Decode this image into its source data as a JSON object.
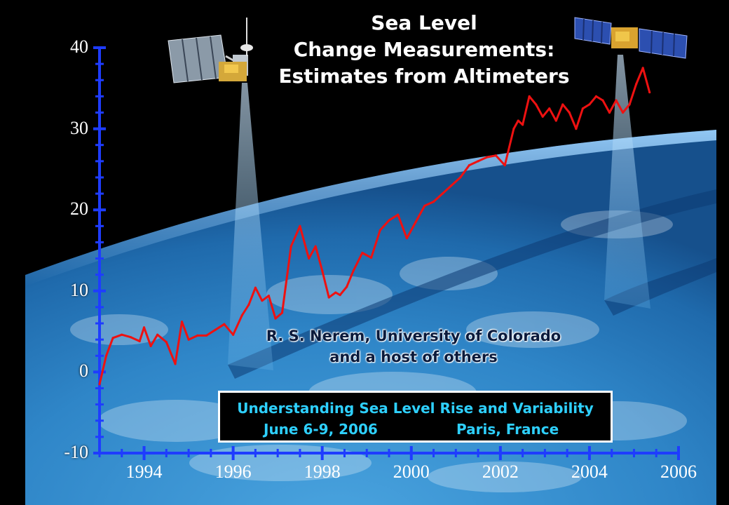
{
  "title": {
    "line1": "Sea Level",
    "line2": "Change Measurements:",
    "line3": "Estimates from Altimeters"
  },
  "credit": {
    "line1": "R. S. Nerem, University of Colorado",
    "line2": "and a host of others"
  },
  "conference": {
    "title": "Understanding Sea Level Rise and Variability",
    "dates": "June 6-9, 2006",
    "location": "Paris, France"
  },
  "colors": {
    "series": "#ee1111",
    "axis": "#1e3cff",
    "text": "#ffffff",
    "conference_text": "#2ed0ff"
  },
  "chart_data": {
    "type": "line",
    "title": "Sea Level Change Measurements: Estimates from Altimeters",
    "xlabel": "",
    "ylabel": "",
    "xlim": [
      1993,
      2006
    ],
    "ylim": [
      -10,
      40
    ],
    "x_ticks": [
      "1994",
      "1996",
      "1998",
      "2000",
      "2002",
      "2004",
      "2006"
    ],
    "y_ticks": [
      "40",
      "30",
      "20",
      "10",
      "0",
      "-10"
    ],
    "grid": false,
    "series": [
      {
        "x": [
          1993.0,
          1993.15,
          1993.3,
          1993.5,
          1993.7,
          1993.9,
          1994.0,
          1994.15,
          1994.3,
          1994.5,
          1994.7,
          1994.85,
          1995.0,
          1995.2,
          1995.4,
          1995.6,
          1995.8,
          1996.0,
          1996.2,
          1996.35,
          1996.5,
          1996.65,
          1996.8,
          1996.95,
          1997.1,
          1997.3,
          1997.5,
          1997.7,
          1997.85,
          1998.0,
          1998.15,
          1998.3,
          1998.4,
          1998.55,
          1998.7,
          1998.9,
          1999.1,
          1999.3,
          1999.5,
          1999.7,
          1999.9,
          2000.1,
          2000.3,
          2000.5,
          2000.7,
          2000.9,
          2001.1,
          2001.3,
          2001.5,
          2001.7,
          2001.9,
          2002.1,
          2002.3,
          2002.4,
          2002.5,
          2002.65,
          2002.8,
          2002.95,
          2003.1,
          2003.25,
          2003.4,
          2003.55,
          2003.7,
          2003.85,
          2004.0,
          2004.15,
          2004.3,
          2004.45,
          2004.6,
          2004.75,
          2004.9,
          2005.05,
          2005.2,
          2005.35
        ],
        "y": [
          -1.5,
          2.0,
          4.2,
          4.6,
          4.3,
          3.8,
          5.5,
          3.2,
          4.6,
          3.7,
          1.0,
          6.2,
          4.0,
          4.5,
          4.5,
          5.2,
          5.9,
          4.6,
          7.0,
          8.3,
          10.4,
          8.8,
          9.4,
          6.6,
          7.3,
          15.5,
          18.0,
          14.0,
          15.5,
          12.5,
          9.2,
          9.8,
          9.5,
          10.5,
          12.5,
          14.7,
          14.1,
          17.5,
          18.7,
          19.4,
          16.5,
          18.5,
          20.5,
          21.0,
          22.0,
          23.0,
          24.0,
          25.5,
          26.0,
          26.5,
          26.7,
          25.5,
          30.0,
          31.0,
          30.5,
          34.0,
          33.0,
          31.5,
          32.5,
          31.0,
          33.0,
          32.0,
          30.0,
          32.5,
          33.0,
          34.0,
          33.5,
          32.0,
          33.5,
          32.0,
          33.0,
          35.5,
          37.5,
          34.5
        ]
      }
    ]
  }
}
